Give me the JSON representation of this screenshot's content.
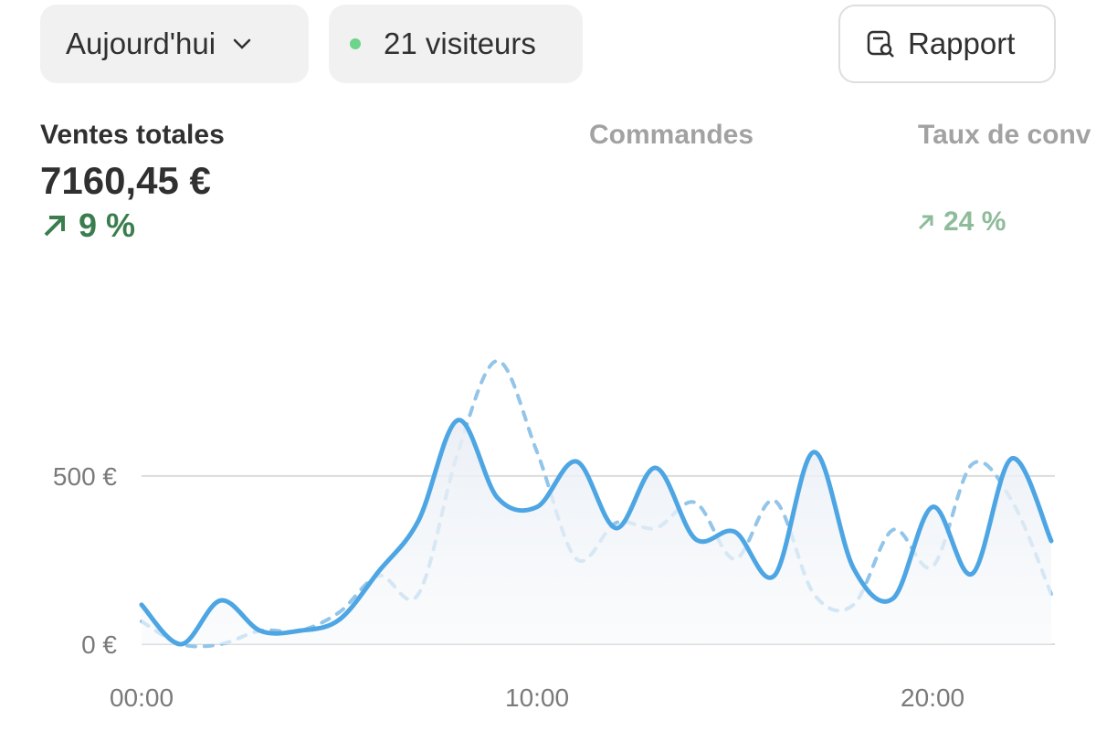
{
  "toolbar": {
    "date_filter": "Aujourd'hui",
    "visitors": "21 visiteurs",
    "report": "Rapport"
  },
  "metrics": [
    {
      "label": "Ventes totales",
      "value": "7160,45 €",
      "change": "9 %"
    },
    {
      "label": "Commandes"
    },
    {
      "label": "Taux de conv",
      "change": "24 %"
    }
  ],
  "chart_data": {
    "type": "line",
    "x": [
      0,
      1,
      2,
      3,
      4,
      5,
      6,
      7,
      8,
      9,
      10,
      11,
      12,
      13,
      14,
      15,
      16,
      17,
      18,
      19,
      20,
      21,
      22,
      23
    ],
    "series": [
      {
        "color": "#4da6e3",
        "style": "solid",
        "fill": true,
        "values": [
          117,
          0,
          130,
          40,
          40,
          73,
          217,
          367,
          666,
          435,
          408,
          543,
          345,
          524,
          313,
          334,
          204,
          571,
          226,
          136,
          408,
          209,
          552,
          307
        ]
      },
      {
        "color": "#92c5e8",
        "style": "dashed",
        "fill": false,
        "values": [
          68,
          0,
          0,
          40,
          40,
          95,
          204,
          149,
          571,
          842,
          571,
          253,
          361,
          345,
          421,
          253,
          427,
          149,
          117,
          340,
          231,
          535,
          427,
          149
        ]
      }
    ],
    "xlim": [
      0,
      23
    ],
    "ylim": [
      0,
      1100
    ],
    "xticks": [
      {
        "value": 0,
        "label": "00:00"
      },
      {
        "value": 10,
        "label": "10:00"
      },
      {
        "value": 20,
        "label": "20:00"
      }
    ],
    "yticks": [
      {
        "value": 0,
        "label": "0 €"
      },
      {
        "value": 500,
        "label": "500 €"
      }
    ],
    "grid": true
  }
}
